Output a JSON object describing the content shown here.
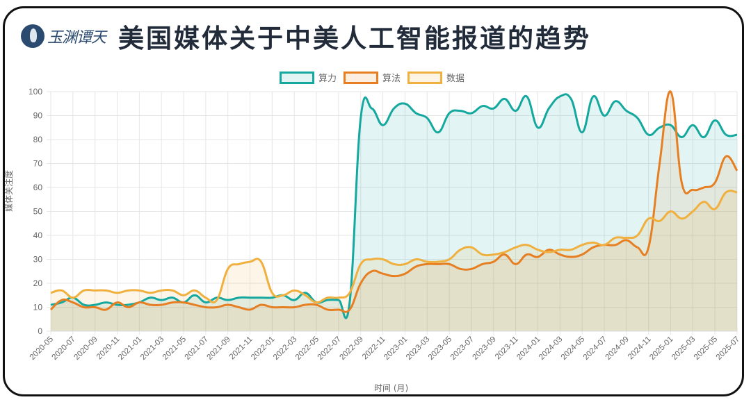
{
  "header": {
    "logo_text": "玉渊谭天",
    "title": "美国媒体关于中美人工智能报道的趋势"
  },
  "colors": {
    "compute": "#14a89f",
    "algorithm": "#e67e22",
    "data": "#f0b040"
  },
  "chart_data": {
    "type": "line",
    "title": "美国媒体关于中美人工智能报道的趋势",
    "xlabel": "时间 (月)",
    "ylabel": "媒体关注度",
    "ylim": [
      0,
      100
    ],
    "yticks": [
      0,
      10,
      20,
      30,
      40,
      50,
      60,
      70,
      80,
      90,
      100
    ],
    "grid": true,
    "legend_position": "top",
    "x_tick_labels": [
      "2020-05",
      "2020-07",
      "2020-09",
      "2020-11",
      "2021-01",
      "2021-03",
      "2021-05",
      "2021-07",
      "2021-09",
      "2021-11",
      "2022-01",
      "2022-03",
      "2022-05",
      "2022-07",
      "2022-09",
      "2022-11",
      "2023-01",
      "2023-03",
      "2023-05",
      "2023-07",
      "2023-09",
      "2023-11",
      "2024-01",
      "2024-03",
      "2024-05",
      "2024-07",
      "2024-09",
      "2024-11",
      "2025-01",
      "2025-03",
      "2025-05",
      "2025-07"
    ],
    "x": [
      "2020-05",
      "2020-06",
      "2020-07",
      "2020-08",
      "2020-09",
      "2020-10",
      "2020-11",
      "2020-12",
      "2021-01",
      "2021-02",
      "2021-03",
      "2021-04",
      "2021-05",
      "2021-06",
      "2021-07",
      "2021-08",
      "2021-09",
      "2021-10",
      "2021-11",
      "2021-12",
      "2022-01",
      "2022-02",
      "2022-03",
      "2022-04",
      "2022-05",
      "2022-06",
      "2022-07",
      "2022-08",
      "2022-09",
      "2022-10",
      "2022-11",
      "2022-12",
      "2023-01",
      "2023-02",
      "2023-03",
      "2023-04",
      "2023-05",
      "2023-06",
      "2023-07",
      "2023-08",
      "2023-09",
      "2023-10",
      "2023-11",
      "2023-12",
      "2024-01",
      "2024-02",
      "2024-03",
      "2024-04",
      "2024-05",
      "2024-06",
      "2024-07",
      "2024-08",
      "2024-09",
      "2024-10",
      "2024-11",
      "2024-12",
      "2025-01",
      "2025-02",
      "2025-03",
      "2025-04",
      "2025-05",
      "2025-06",
      "2025-07"
    ],
    "series": [
      {
        "name": "算力",
        "color": "#14a89f",
        "values": [
          11,
          12,
          14,
          11,
          11,
          12,
          11,
          11,
          12,
          14,
          13,
          14,
          12,
          15,
          12,
          14,
          13,
          14,
          14,
          14,
          14,
          15,
          13,
          16,
          12,
          13,
          13,
          12,
          89,
          93,
          86,
          93,
          95,
          91,
          89,
          83,
          91,
          92,
          91,
          94,
          93,
          97,
          92,
          98,
          85,
          93,
          98,
          97,
          83,
          98,
          90,
          96,
          92,
          89,
          82,
          85,
          86,
          81,
          86,
          81,
          88,
          82,
          82
        ],
        "_note": ""
      },
      {
        "name": "算法",
        "color": "#e67e22",
        "values": [
          9,
          13,
          12,
          10,
          10,
          9,
          12,
          10,
          12,
          11,
          11,
          12,
          12,
          11,
          10,
          10,
          11,
          10,
          9,
          11,
          10,
          10,
          10,
          11,
          11,
          9,
          9,
          9,
          20,
          25,
          24,
          23,
          24,
          27,
          28,
          28,
          28,
          26,
          26,
          28,
          29,
          32,
          28,
          32,
          31,
          34,
          32,
          31,
          32,
          35,
          36,
          36,
          38,
          35,
          35,
          70,
          100,
          62,
          59,
          60,
          62,
          73,
          67
        ]
      },
      {
        "name": "数据",
        "color": "#f0b040",
        "values": [
          16,
          17,
          14,
          17,
          17,
          17,
          16,
          17,
          17,
          16,
          17,
          17,
          15,
          17,
          14,
          13,
          26,
          28,
          29,
          29,
          16,
          15,
          17,
          15,
          12,
          14,
          14,
          16,
          28,
          30,
          30,
          28,
          28,
          30,
          29,
          29,
          30,
          34,
          35,
          32,
          32,
          33,
          35,
          36,
          34,
          33,
          34,
          34,
          36,
          37,
          36,
          39,
          39,
          40,
          47,
          46,
          50,
          47,
          50,
          54,
          51,
          58,
          58
        ]
      }
    ]
  },
  "legend": {
    "items": [
      {
        "label": "算力"
      },
      {
        "label": "算法"
      },
      {
        "label": "数据"
      }
    ]
  }
}
